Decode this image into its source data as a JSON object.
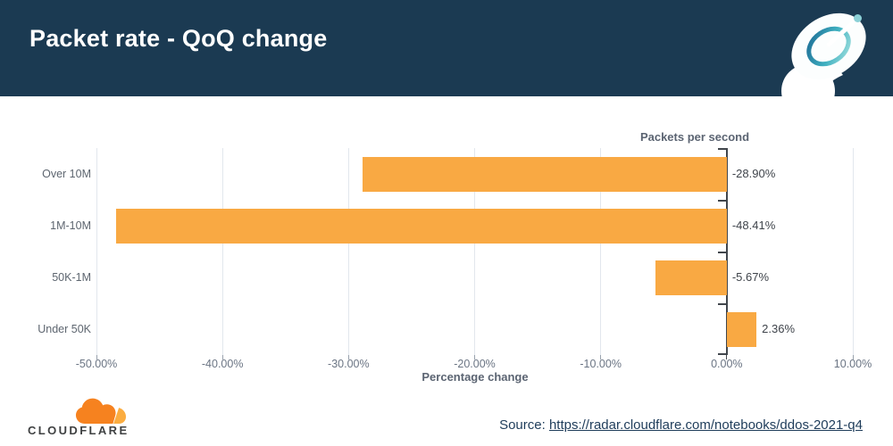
{
  "header": {
    "title": "Packet rate - QoQ change"
  },
  "chart_data": {
    "type": "bar",
    "orientation": "horizontal",
    "title": "Packet rate - QoQ change",
    "series_title": "Packets per second",
    "categories": [
      "Over 10M",
      "1M-10M",
      "50K-1M",
      "Under 50K"
    ],
    "values": [
      -28.9,
      -48.41,
      -5.67,
      2.36
    ],
    "value_labels": [
      "-28.90%",
      "-48.41%",
      "-5.67%",
      "2.36%"
    ],
    "xlabel": "Percentage change",
    "xlim": [
      -50,
      10
    ],
    "x_tick_values": [
      -50,
      -40,
      -30,
      -20,
      -10,
      0,
      10
    ],
    "x_tick_labels": [
      "-50.00%",
      "-40.00%",
      "-30.00%",
      "-20.00%",
      "-10.00%",
      "0.00%",
      "10.00%"
    ],
    "grid": true,
    "bar_color": "#F9A943"
  },
  "footer": {
    "logo_text": "CLOUDFLARE",
    "source_label": "Source: ",
    "source_url": "https://radar.cloudflare.com/notebooks/ddos-2021-q4"
  },
  "colors": {
    "header_bg": "#1B3A52",
    "grid": "#E2E7ED",
    "zero_axis": "#41464C",
    "tick_label": "#6B7584",
    "category_label": "#5E6670",
    "value_label": "#3F444B",
    "axis_title": "#5B6472",
    "source_text": "#1E3C5A"
  }
}
